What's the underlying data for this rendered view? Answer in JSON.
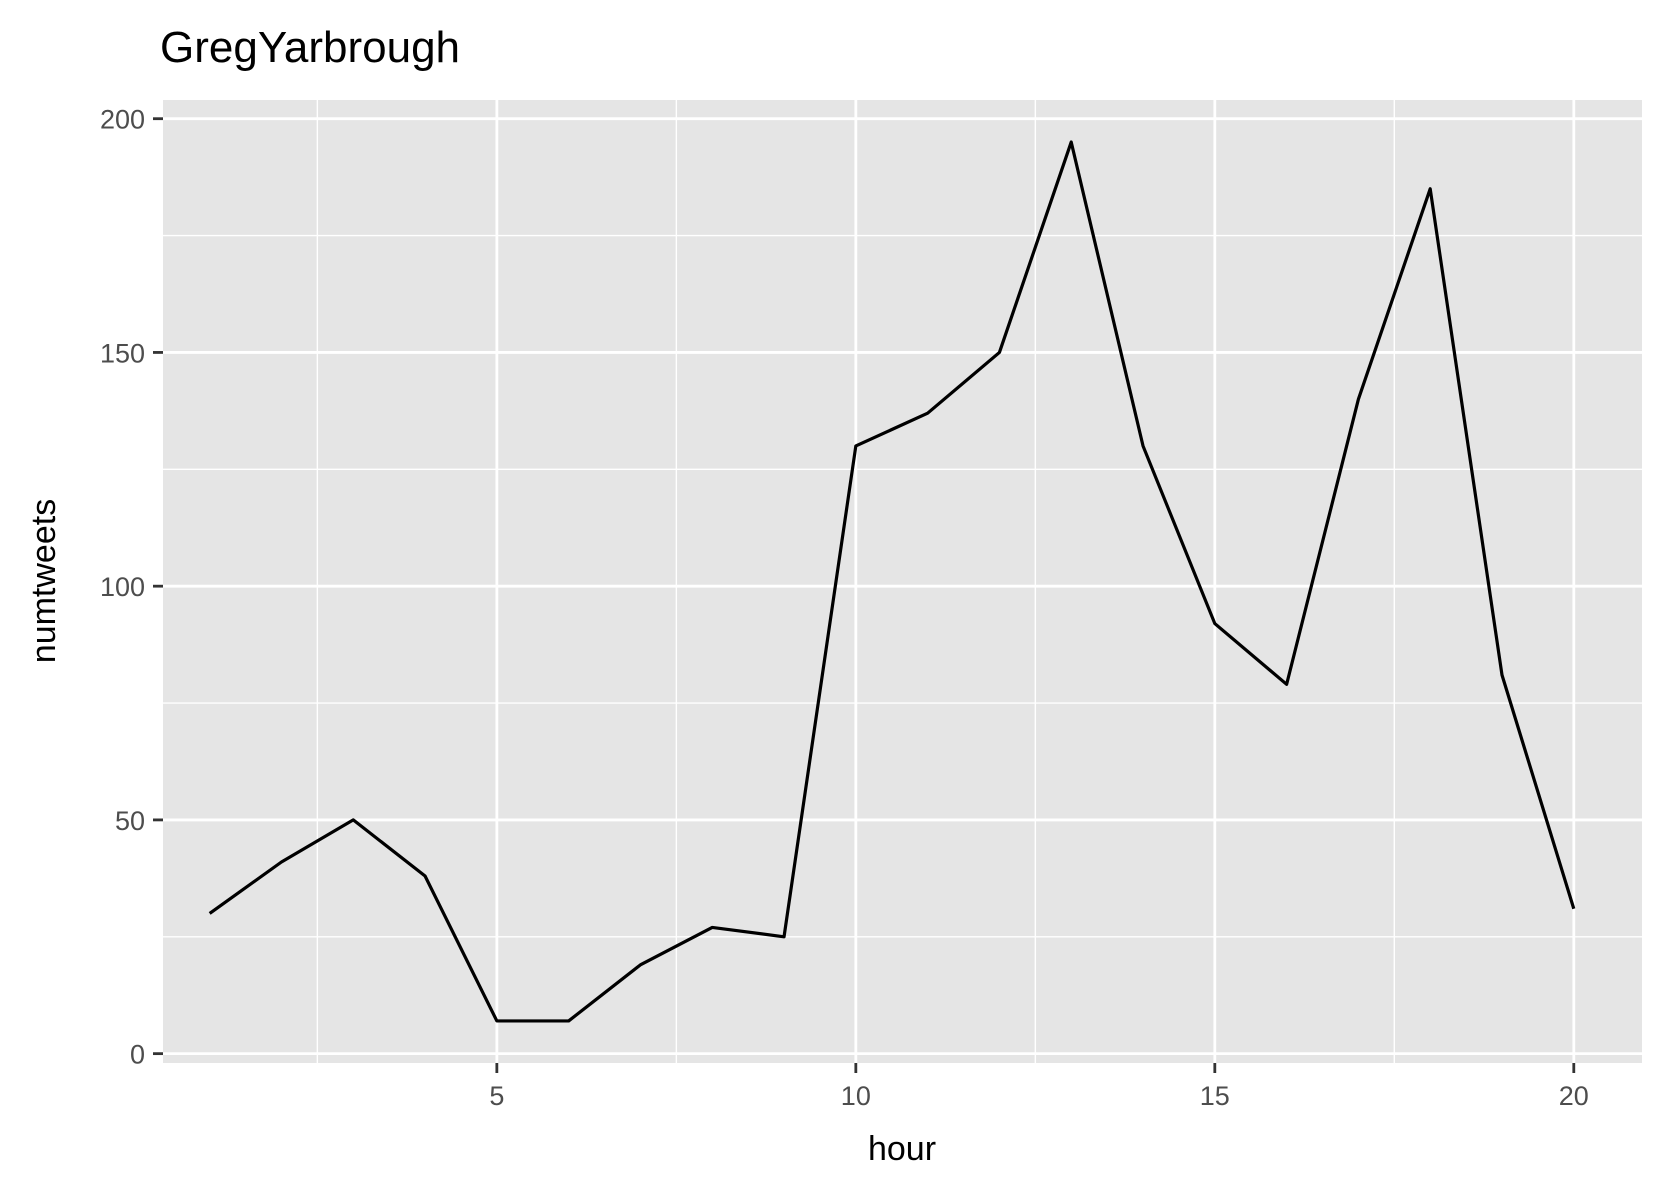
{
  "chart_data": {
    "type": "line",
    "title": "GregYarbrough",
    "xlabel": "hour",
    "ylabel": "numtweets",
    "xlim": [
      0.35,
      20.95
    ],
    "ylim": [
      -2,
      204
    ],
    "x_ticks": [
      5,
      10,
      15,
      20
    ],
    "x_minor": [
      2.5,
      7.5,
      12.5,
      17.5
    ],
    "y_ticks": [
      0,
      50,
      100,
      150,
      200
    ],
    "y_minor": [
      25,
      75,
      125,
      175
    ],
    "grid": true,
    "legend": "none",
    "colors": {
      "panel": "#e5e5e5",
      "grid": "#ffffff",
      "line": "#000000",
      "tick": "#333333"
    },
    "series": [
      {
        "x": [
          1,
          2,
          3,
          4,
          5,
          6,
          7,
          8,
          9,
          10,
          11,
          12,
          13,
          14,
          15,
          16,
          17,
          18,
          19,
          20
        ],
        "values": [
          30,
          41,
          50,
          38,
          7,
          7,
          19,
          27,
          25,
          130,
          137,
          150,
          195,
          130,
          92,
          79,
          140,
          185,
          81,
          31
        ]
      }
    ]
  }
}
